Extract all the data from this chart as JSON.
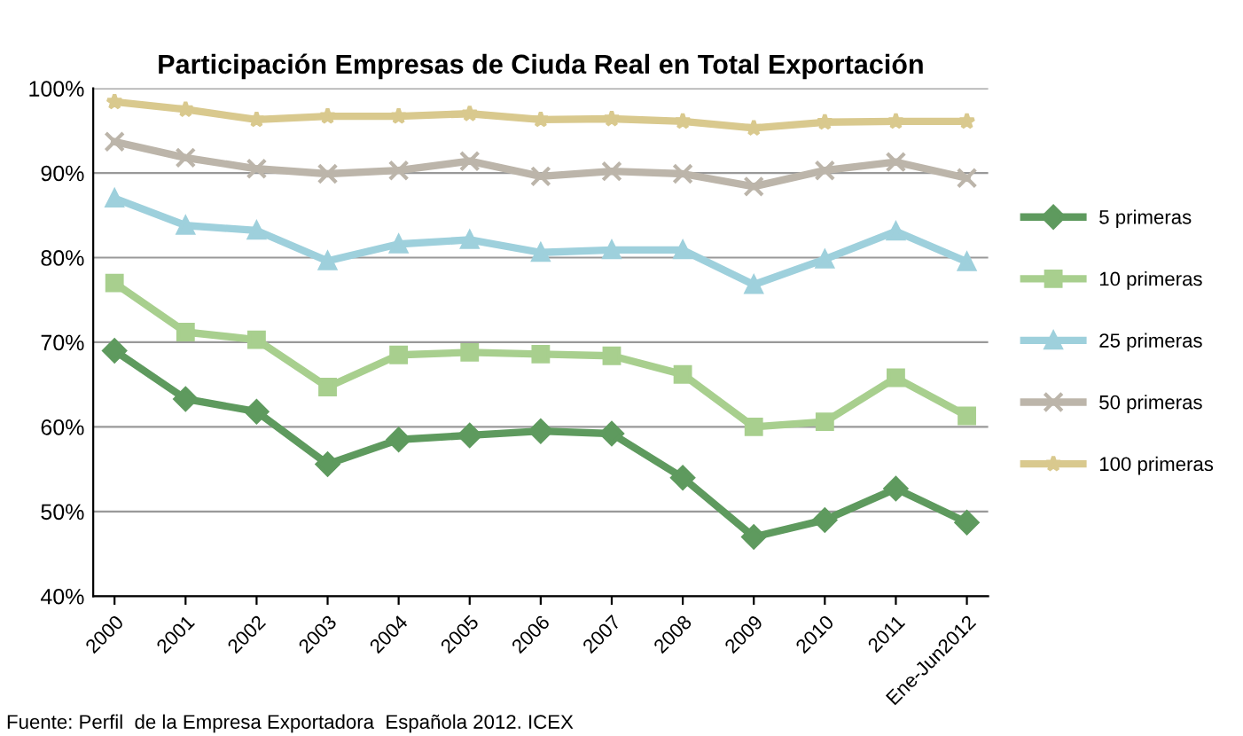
{
  "chart_data": {
    "type": "line",
    "title": "Participación Empresas de Ciuda Real en Total Exportación",
    "categories": [
      "2000",
      "2001",
      "2002",
      "2003",
      "2004",
      "2005",
      "2006",
      "2007",
      "2008",
      "2009",
      "2010",
      "2011",
      "Ene-Jun2012"
    ],
    "series": [
      {
        "name": "5 primeras",
        "color": "#5e9a5e",
        "marker": "diamond",
        "values": [
          69,
          63.3,
          61.8,
          55.6,
          58.5,
          59,
          59.5,
          59.2,
          54,
          47,
          49,
          52.7,
          48.7
        ]
      },
      {
        "name": "10 primeras",
        "color": "#a8cf8e",
        "marker": "square",
        "values": [
          77,
          71.2,
          70.3,
          64.7,
          68.5,
          68.8,
          68.6,
          68.4,
          66.2,
          60,
          60.6,
          65.8,
          61.3
        ]
      },
      {
        "name": "25 primeras",
        "color": "#9ed0dc",
        "marker": "triangle",
        "values": [
          87,
          83.8,
          83.2,
          79.6,
          81.6,
          82.1,
          80.6,
          80.9,
          80.9,
          76.8,
          79.8,
          83.1,
          79.5
        ]
      },
      {
        "name": "50 primeras",
        "color": "#bcb5aa",
        "marker": "cross",
        "values": [
          93.7,
          91.8,
          90.5,
          89.9,
          90.3,
          91.4,
          89.6,
          90.2,
          89.9,
          88.4,
          90.3,
          91.3,
          89.4
        ]
      },
      {
        "name": "100 primeras",
        "color": "#d9c98e",
        "marker": "star",
        "values": [
          98.4,
          97.5,
          96.3,
          96.7,
          96.7,
          97,
          96.3,
          96.4,
          96.1,
          95.3,
          96,
          96.1,
          96.1
        ]
      }
    ],
    "ylim": [
      40,
      100
    ],
    "yticks": [
      {
        "value": 40,
        "label": "40%"
      },
      {
        "value": 50,
        "label": "50%"
      },
      {
        "value": 60,
        "label": "60%"
      },
      {
        "value": 70,
        "label": "70%"
      },
      {
        "value": 80,
        "label": "80%"
      },
      {
        "value": 90,
        "label": "90%"
      },
      {
        "value": 100,
        "label": "100%"
      }
    ],
    "grid": "y",
    "legend": "right",
    "line_style": "solid",
    "annotations": [
      "Fuente: Perfil  de la Empresa Exportadora  Española 2012. ICEX"
    ]
  }
}
